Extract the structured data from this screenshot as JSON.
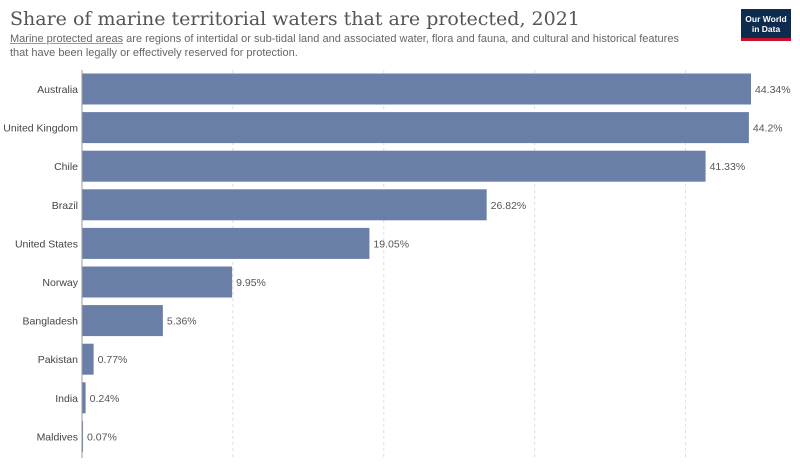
{
  "header": {
    "title": "Share of marine territorial waters that are protected, 2021",
    "subtitle_link": "Marine protected areas",
    "subtitle_rest": " are regions of intertidal or sub-tidal land and associated water, flora and fauna, and cultural and historical features that have been legally or effectively reserved for protection."
  },
  "logo": {
    "line1": "Our World",
    "line2": "in Data"
  },
  "colors": {
    "bar": "#6a7fa8",
    "grid": "#dddddd",
    "label": "#444444",
    "value": "#555555",
    "logo_bg": "#0d2a4f",
    "logo_accent": "#c8102e"
  },
  "chart_data": {
    "type": "bar",
    "orientation": "horizontal",
    "categories": [
      "Australia",
      "United Kingdom",
      "Chile",
      "Brazil",
      "United States",
      "Norway",
      "Bangladesh",
      "Pakistan",
      "India",
      "Maldives"
    ],
    "values": [
      44.34,
      44.2,
      41.33,
      26.82,
      19.05,
      9.95,
      5.36,
      0.77,
      0.24,
      0.07
    ],
    "value_labels": [
      "44.34%",
      "44.2%",
      "41.33%",
      "26.82%",
      "19.05%",
      "9.95%",
      "5.36%",
      "0.77%",
      "0.24%",
      "0.07%"
    ],
    "xlim": [
      0,
      44.34
    ],
    "gridlines": [
      10,
      20,
      30,
      40
    ],
    "grid": true
  }
}
